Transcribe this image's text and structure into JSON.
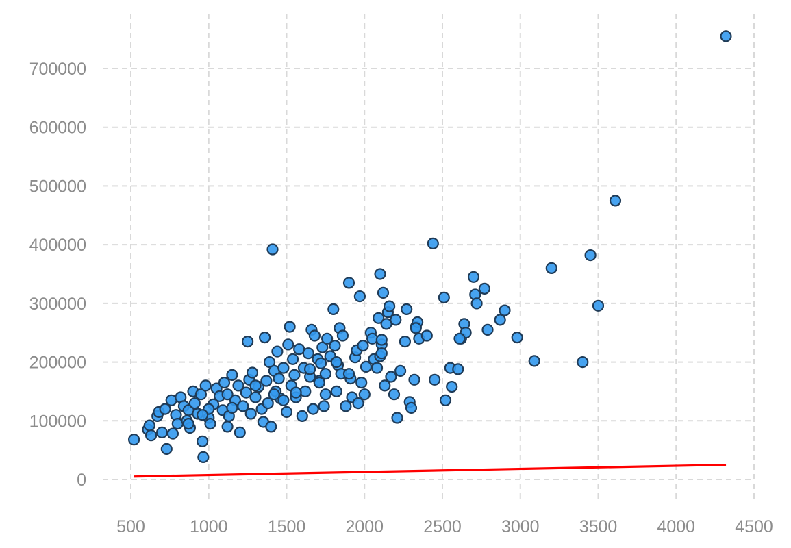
{
  "chart_data": {
    "type": "scatter",
    "title": "",
    "xlabel": "",
    "ylabel": "",
    "xlim": [
      360,
      4560
    ],
    "ylim": [
      -30000,
      785000
    ],
    "xticks": [
      500,
      1000,
      1500,
      2000,
      2500,
      3000,
      3500,
      4000,
      4500
    ],
    "yticks": [
      0,
      100000,
      200000,
      300000,
      400000,
      500000,
      600000,
      700000
    ],
    "grid": true,
    "colors": {
      "points": "#3399ee",
      "point_edge": "#1f3b57",
      "fit_line": "#ff0000",
      "grid": "#d9d9d9",
      "tick_text": "#8c8c8c"
    },
    "series": [
      {
        "kind": "scatter",
        "x": [
          520,
          610,
          620,
          630,
          670,
          680,
          700,
          720,
          730,
          760,
          770,
          790,
          800,
          820,
          840,
          860,
          870,
          880,
          900,
          910,
          930,
          950,
          960,
          965,
          980,
          1000,
          1010,
          1030,
          1050,
          1070,
          1090,
          1100,
          1120,
          1130,
          1150,
          1170,
          1190,
          1200,
          1220,
          1240,
          1250,
          1260,
          1270,
          1280,
          1300,
          1320,
          1340,
          1350,
          1360,
          1370,
          1380,
          1390,
          1400,
          1410,
          1420,
          1430,
          1440,
          1450,
          1460,
          1480,
          1500,
          1510,
          1520,
          1530,
          1540,
          1550,
          1560,
          1580,
          1600,
          1610,
          1620,
          1640,
          1650,
          1660,
          1670,
          1680,
          1700,
          1710,
          1720,
          1730,
          1740,
          1750,
          1760,
          1780,
          1800,
          1810,
          1820,
          1830,
          1840,
          1850,
          1860,
          1880,
          1900,
          1910,
          1920,
          1940,
          1950,
          1960,
          1970,
          1980,
          1990,
          2000,
          2010,
          2040,
          2050,
          2060,
          2080,
          2090,
          2100,
          2110,
          2120,
          2130,
          2140,
          2150,
          2160,
          2170,
          2190,
          2200,
          2210,
          2230,
          2260,
          2270,
          2290,
          2300,
          2320,
          2330,
          2340,
          2350,
          2400,
          2440,
          2450,
          2510,
          2520,
          2550,
          2600,
          2620,
          2640,
          2650,
          2700,
          2710,
          2720,
          2770,
          2790,
          2870,
          2900,
          2980,
          3090,
          3200,
          3400,
          3450,
          3500,
          3610,
          4320,
          1420,
          1900,
          2110,
          1710,
          1560,
          1000,
          870,
          960,
          1120,
          1300,
          1480,
          1650,
          1820,
          2100,
          2330,
          2560,
          2610,
          2110,
          1750,
          1150
        ],
        "y": [
          68000,
          85000,
          92000,
          75000,
          108000,
          115000,
          80000,
          120000,
          52000,
          135000,
          78000,
          110000,
          95000,
          140000,
          125000,
          100000,
          118000,
          88000,
          150000,
          130000,
          112000,
          145000,
          65000,
          38000,
          160000,
          105000,
          95000,
          128000,
          155000,
          142000,
          118000,
          165000,
          90000,
          108000,
          178000,
          135000,
          160000,
          80000,
          125000,
          148000,
          235000,
          170000,
          112000,
          182000,
          140000,
          158000,
          120000,
          98000,
          242000,
          168000,
          130000,
          200000,
          90000,
          392000,
          185000,
          150000,
          218000,
          172000,
          138000,
          190000,
          115000,
          230000,
          260000,
          160000,
          205000,
          178000,
          140000,
          222000,
          108000,
          190000,
          150000,
          215000,
          175000,
          255000,
          120000,
          245000,
          205000,
          168000,
          198000,
          225000,
          125000,
          180000,
          240000,
          210000,
          290000,
          228000,
          150000,
          195000,
          258000,
          180000,
          245000,
          125000,
          335000,
          172000,
          140000,
          208000,
          220000,
          130000,
          312000,
          165000,
          228000,
          145000,
          192000,
          250000,
          240000,
          205000,
          190000,
          275000,
          350000,
          230000,
          318000,
          160000,
          265000,
          285000,
          295000,
          175000,
          145000,
          272000,
          105000,
          185000,
          235000,
          290000,
          132000,
          122000,
          170000,
          260000,
          268000,
          240000,
          245000,
          402000,
          170000,
          310000,
          135000,
          190000,
          188000,
          240000,
          265000,
          250000,
          345000,
          315000,
          300000,
          325000,
          255000,
          272000,
          288000,
          242000,
          202000,
          360000,
          200000,
          382000,
          296000,
          475000,
          755000,
          145000,
          180000,
          238000,
          165000,
          148000,
          120000,
          95000,
          110000,
          145000,
          160000,
          135000,
          188000,
          200000,
          210000,
          258000,
          158000,
          240000,
          215000,
          145000,
          122000
        ]
      },
      {
        "kind": "line",
        "x": [
          520,
          4320
        ],
        "y": [
          5000,
          25000
        ]
      }
    ]
  },
  "axes": {
    "x_tick_labels": [
      "500",
      "1000",
      "1500",
      "2000",
      "2500",
      "3000",
      "3500",
      "4000",
      "4500"
    ],
    "y_tick_labels": [
      "0",
      "100000",
      "200000",
      "300000",
      "400000",
      "500000",
      "600000",
      "700000"
    ]
  }
}
